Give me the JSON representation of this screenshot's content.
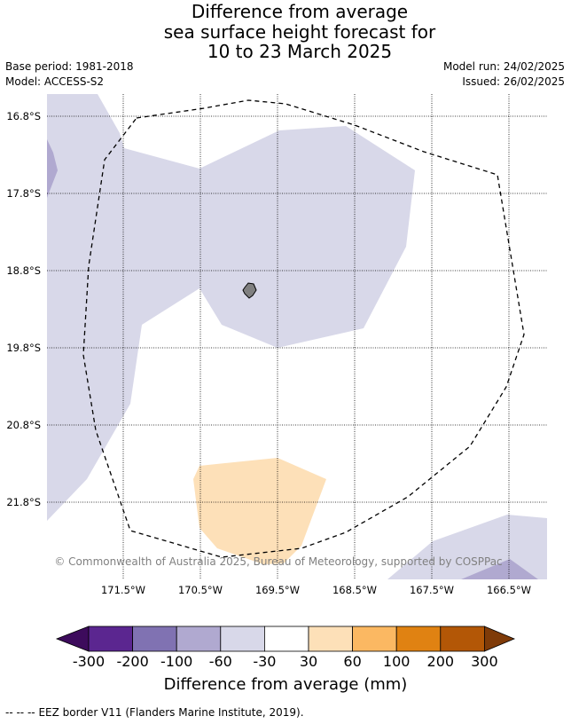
{
  "title": {
    "line1": "Difference from average",
    "line2": "sea surface height forecast for",
    "line3": "10 to 23 March 2025"
  },
  "meta": {
    "base_period": "Base period: 1981-2018",
    "model": "Model: ACCESS-S2",
    "model_run": "Model run: 24/02/2025",
    "issued": "Issued: 26/02/2025"
  },
  "map": {
    "lat_labels": [
      "16.8°S",
      "17.8°S",
      "18.8°S",
      "19.8°S",
      "20.8°S",
      "21.8°S"
    ],
    "lon_labels": [
      "171.5°W",
      "170.5°W",
      "169.5°W",
      "168.5°W",
      "167.5°W",
      "166.5°W"
    ],
    "copyright": "© Commonwealth of Australia 2025, Bureau of Meteorology, supported by COSPPac",
    "colors": {
      "neg30_60": "#d8d8e9",
      "neg60_100": "#b0a9d0",
      "pos30_60": "#fde0b8",
      "land": "#808080",
      "grid": "#000000"
    }
  },
  "colorbar": {
    "title": "Difference from average (mm)",
    "ticks": [
      "-300",
      "-200",
      "-100",
      "-60",
      "-30",
      "30",
      "60",
      "100",
      "200",
      "300"
    ],
    "colors": {
      "under": "#3d0b5c",
      "c1": "#5b2690",
      "c2": "#8072b2",
      "c3": "#b0a9d0",
      "c4": "#d8d8e9",
      "c5": "#ffffff",
      "c6": "#fde0b8",
      "c7": "#fbb862",
      "c8": "#e08212",
      "c9": "#b35706",
      "over": "#7f3b08"
    }
  },
  "footer": {
    "legend_marker": "-- -- --",
    "legend_text": "EEZ border V11 (Flanders Marine Institute, 2019)."
  }
}
